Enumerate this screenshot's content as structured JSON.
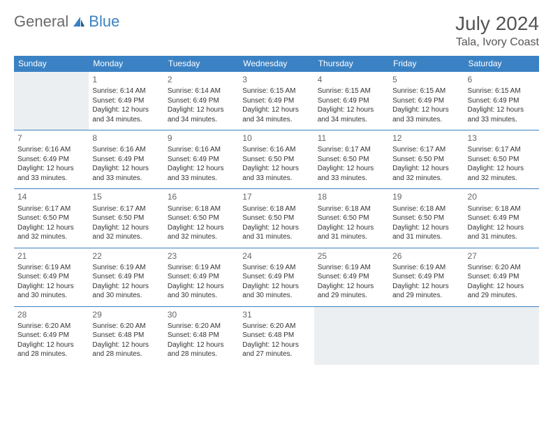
{
  "logo": {
    "text1": "General",
    "text2": "Blue",
    "text1_color": "#6a6a6a",
    "text2_color": "#3b82c4"
  },
  "title": "July 2024",
  "location": "Tala, Ivory Coast",
  "day_headers": [
    "Sunday",
    "Monday",
    "Tuesday",
    "Wednesday",
    "Thursday",
    "Friday",
    "Saturday"
  ],
  "colors": {
    "header_bg": "#3b82c4",
    "header_text": "#ffffff",
    "border": "#3b82c4",
    "empty_bg": "#eceff1",
    "body_text": "#333333",
    "daynum_text": "#666666"
  },
  "weeks": [
    [
      {
        "empty": true
      },
      {
        "n": "1",
        "sr": "Sunrise: 6:14 AM",
        "ss": "Sunset: 6:49 PM",
        "dl": "Daylight: 12 hours and 34 minutes."
      },
      {
        "n": "2",
        "sr": "Sunrise: 6:14 AM",
        "ss": "Sunset: 6:49 PM",
        "dl": "Daylight: 12 hours and 34 minutes."
      },
      {
        "n": "3",
        "sr": "Sunrise: 6:15 AM",
        "ss": "Sunset: 6:49 PM",
        "dl": "Daylight: 12 hours and 34 minutes."
      },
      {
        "n": "4",
        "sr": "Sunrise: 6:15 AM",
        "ss": "Sunset: 6:49 PM",
        "dl": "Daylight: 12 hours and 34 minutes."
      },
      {
        "n": "5",
        "sr": "Sunrise: 6:15 AM",
        "ss": "Sunset: 6:49 PM",
        "dl": "Daylight: 12 hours and 33 minutes."
      },
      {
        "n": "6",
        "sr": "Sunrise: 6:15 AM",
        "ss": "Sunset: 6:49 PM",
        "dl": "Daylight: 12 hours and 33 minutes."
      }
    ],
    [
      {
        "n": "7",
        "sr": "Sunrise: 6:16 AM",
        "ss": "Sunset: 6:49 PM",
        "dl": "Daylight: 12 hours and 33 minutes."
      },
      {
        "n": "8",
        "sr": "Sunrise: 6:16 AM",
        "ss": "Sunset: 6:49 PM",
        "dl": "Daylight: 12 hours and 33 minutes."
      },
      {
        "n": "9",
        "sr": "Sunrise: 6:16 AM",
        "ss": "Sunset: 6:49 PM",
        "dl": "Daylight: 12 hours and 33 minutes."
      },
      {
        "n": "10",
        "sr": "Sunrise: 6:16 AM",
        "ss": "Sunset: 6:50 PM",
        "dl": "Daylight: 12 hours and 33 minutes."
      },
      {
        "n": "11",
        "sr": "Sunrise: 6:17 AM",
        "ss": "Sunset: 6:50 PM",
        "dl": "Daylight: 12 hours and 33 minutes."
      },
      {
        "n": "12",
        "sr": "Sunrise: 6:17 AM",
        "ss": "Sunset: 6:50 PM",
        "dl": "Daylight: 12 hours and 32 minutes."
      },
      {
        "n": "13",
        "sr": "Sunrise: 6:17 AM",
        "ss": "Sunset: 6:50 PM",
        "dl": "Daylight: 12 hours and 32 minutes."
      }
    ],
    [
      {
        "n": "14",
        "sr": "Sunrise: 6:17 AM",
        "ss": "Sunset: 6:50 PM",
        "dl": "Daylight: 12 hours and 32 minutes."
      },
      {
        "n": "15",
        "sr": "Sunrise: 6:17 AM",
        "ss": "Sunset: 6:50 PM",
        "dl": "Daylight: 12 hours and 32 minutes."
      },
      {
        "n": "16",
        "sr": "Sunrise: 6:18 AM",
        "ss": "Sunset: 6:50 PM",
        "dl": "Daylight: 12 hours and 32 minutes."
      },
      {
        "n": "17",
        "sr": "Sunrise: 6:18 AM",
        "ss": "Sunset: 6:50 PM",
        "dl": "Daylight: 12 hours and 31 minutes."
      },
      {
        "n": "18",
        "sr": "Sunrise: 6:18 AM",
        "ss": "Sunset: 6:50 PM",
        "dl": "Daylight: 12 hours and 31 minutes."
      },
      {
        "n": "19",
        "sr": "Sunrise: 6:18 AM",
        "ss": "Sunset: 6:50 PM",
        "dl": "Daylight: 12 hours and 31 minutes."
      },
      {
        "n": "20",
        "sr": "Sunrise: 6:18 AM",
        "ss": "Sunset: 6:49 PM",
        "dl": "Daylight: 12 hours and 31 minutes."
      }
    ],
    [
      {
        "n": "21",
        "sr": "Sunrise: 6:19 AM",
        "ss": "Sunset: 6:49 PM",
        "dl": "Daylight: 12 hours and 30 minutes."
      },
      {
        "n": "22",
        "sr": "Sunrise: 6:19 AM",
        "ss": "Sunset: 6:49 PM",
        "dl": "Daylight: 12 hours and 30 minutes."
      },
      {
        "n": "23",
        "sr": "Sunrise: 6:19 AM",
        "ss": "Sunset: 6:49 PM",
        "dl": "Daylight: 12 hours and 30 minutes."
      },
      {
        "n": "24",
        "sr": "Sunrise: 6:19 AM",
        "ss": "Sunset: 6:49 PM",
        "dl": "Daylight: 12 hours and 30 minutes."
      },
      {
        "n": "25",
        "sr": "Sunrise: 6:19 AM",
        "ss": "Sunset: 6:49 PM",
        "dl": "Daylight: 12 hours and 29 minutes."
      },
      {
        "n": "26",
        "sr": "Sunrise: 6:19 AM",
        "ss": "Sunset: 6:49 PM",
        "dl": "Daylight: 12 hours and 29 minutes."
      },
      {
        "n": "27",
        "sr": "Sunrise: 6:20 AM",
        "ss": "Sunset: 6:49 PM",
        "dl": "Daylight: 12 hours and 29 minutes."
      }
    ],
    [
      {
        "n": "28",
        "sr": "Sunrise: 6:20 AM",
        "ss": "Sunset: 6:49 PM",
        "dl": "Daylight: 12 hours and 28 minutes."
      },
      {
        "n": "29",
        "sr": "Sunrise: 6:20 AM",
        "ss": "Sunset: 6:48 PM",
        "dl": "Daylight: 12 hours and 28 minutes."
      },
      {
        "n": "30",
        "sr": "Sunrise: 6:20 AM",
        "ss": "Sunset: 6:48 PM",
        "dl": "Daylight: 12 hours and 28 minutes."
      },
      {
        "n": "31",
        "sr": "Sunrise: 6:20 AM",
        "ss": "Sunset: 6:48 PM",
        "dl": "Daylight: 12 hours and 27 minutes."
      },
      {
        "empty": true
      },
      {
        "empty": true
      },
      {
        "empty": true
      }
    ]
  ]
}
